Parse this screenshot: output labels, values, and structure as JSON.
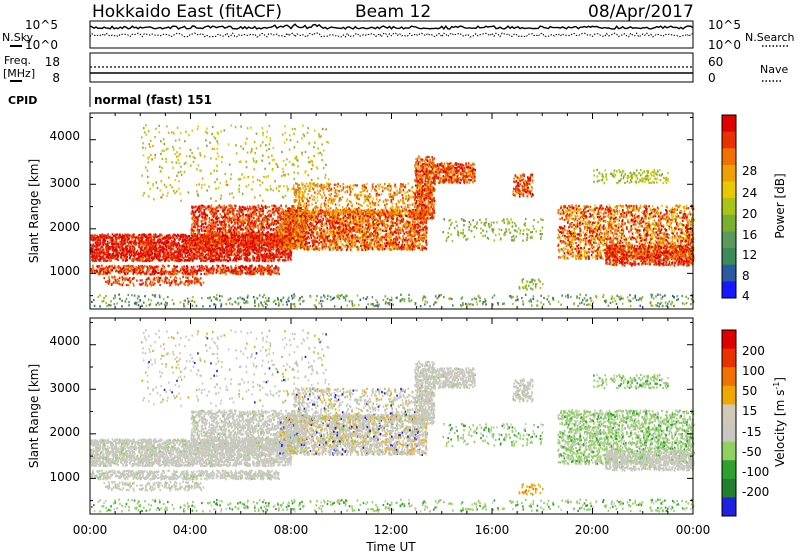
{
  "header": {
    "station": "Hokkaido East (fitACF)",
    "beam": "Beam 12",
    "date": "08/Apr/2017"
  },
  "noise_panel": {
    "left_label": "N.Sky",
    "right_label": "N.Search",
    "y_ticks": [
      "10^5",
      "10^0"
    ]
  },
  "freq_panel": {
    "left_label_1": "Freq.",
    "left_label_2": "[MHz]",
    "left_ticks": [
      "18",
      "8"
    ],
    "right_label": "Nave",
    "right_ticks": [
      "60",
      "0"
    ]
  },
  "cpid": {
    "label": "CPID",
    "value": "normal (fast) 151"
  },
  "colors": {
    "power_scale": [
      "#1818ff",
      "#2a5aa0",
      "#3a8a5a",
      "#5a9a5a",
      "#7ab030",
      "#a8c418",
      "#e8c800",
      "#f0a000",
      "#f07000",
      "#e83000",
      "#e00000"
    ],
    "velocity_scale": [
      "#2020e0",
      "#208030",
      "#30a030",
      "#90d060",
      "#c8c8c0",
      "#d0c8b8",
      "#f0a800",
      "#f07000",
      "#e83000",
      "#e00000"
    ]
  },
  "chart_data": [
    {
      "type": "heatmap",
      "name": "power",
      "ylabel": "Slant Range [km]",
      "xlabel": "Time UT",
      "y_ticks": [
        "4000",
        "3000",
        "2000",
        "1000"
      ],
      "ylim": [
        200,
        4600
      ],
      "xlim_hours": [
        0,
        24
      ],
      "colorbar_label": "Power [dB]",
      "colorbar_ticks": [
        "28",
        "24",
        "20",
        "16",
        "12",
        "8",
        "4"
      ],
      "colorbar_range": [
        0,
        30
      ]
    },
    {
      "type": "heatmap",
      "name": "velocity",
      "ylabel": "Slant Range [km]",
      "xlabel": "Time UT",
      "y_ticks": [
        "4000",
        "3000",
        "2000",
        "1000"
      ],
      "ylim": [
        200,
        4600
      ],
      "xlim_hours": [
        0,
        24
      ],
      "colorbar_label": "Velocity [m s",
      "colorbar_label_sup": "-1",
      "colorbar_label_end": "]",
      "colorbar_ticks": [
        "200",
        "100",
        "50",
        "15",
        "-15",
        "-50",
        "-100",
        "-200"
      ],
      "colorbar_range": [
        -250,
        250
      ]
    }
  ],
  "x_axis": {
    "ticks": [
      "00:00",
      "04:00",
      "08:00",
      "12:00",
      "16:00",
      "20:00",
      "00:00"
    ],
    "label": "Time UT"
  }
}
